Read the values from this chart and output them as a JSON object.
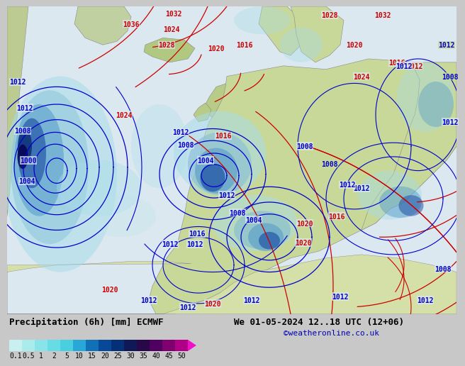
{
  "title_left": "Precipitation (6h) [mm] ECMWF",
  "title_right": "We 01-05-2024 12..18 UTC (12+06)",
  "credit": "©weatheronline.co.uk",
  "colorbar_values": [
    0.1,
    0.5,
    1,
    2,
    5,
    10,
    15,
    20,
    25,
    30,
    35,
    40,
    45,
    50
  ],
  "colorbar_colors": [
    "#c8f0f0",
    "#a0e8e8",
    "#78e0e0",
    "#58d4d8",
    "#38c0d8",
    "#1898cc",
    "#0868b0",
    "#044090",
    "#042870",
    "#101050",
    "#280848",
    "#500060",
    "#800070",
    "#b00088",
    "#d800a8",
    "#f010c8"
  ],
  "bg_color": "#c8c8c8",
  "ocean_color": "#dce8f0",
  "land_color_europe": "#c8d898",
  "land_color_north": "#b8cc88",
  "font_color": "#000000",
  "credit_color": "#0000bb",
  "font_size_title": 9,
  "font_size_tick": 7,
  "font_size_isobar": 7,
  "isobar_color_red": "#cc0000",
  "isobar_color_blue": "#0000cc",
  "border_color": "#888888",
  "precip_light": "#a8dce8",
  "precip_mid": "#5098c8",
  "precip_dark": "#1848a0",
  "precip_vdark": "#082870"
}
